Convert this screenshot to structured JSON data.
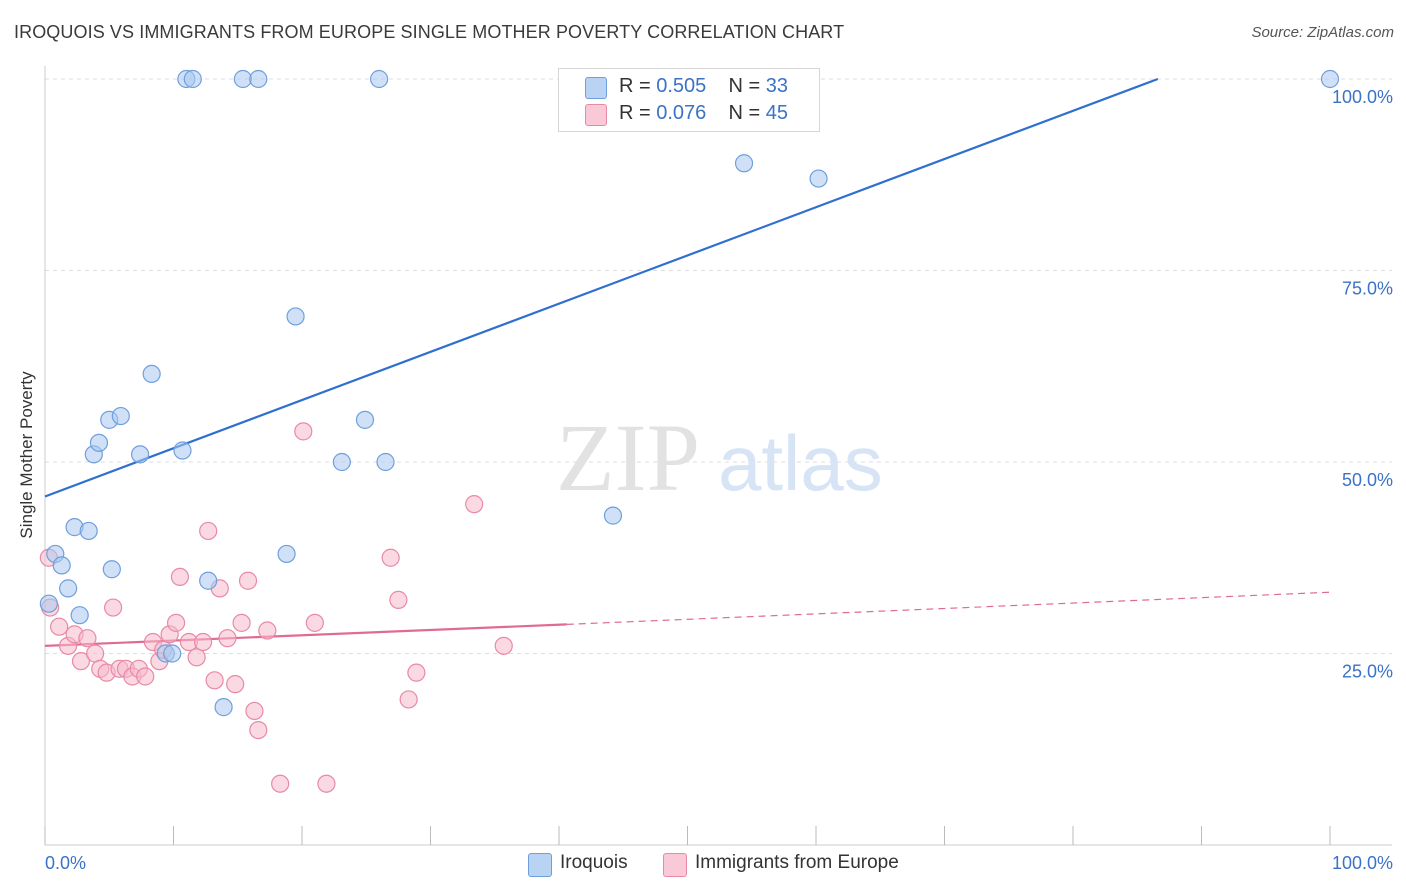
{
  "header": {
    "title": "IROQUOIS VS IMMIGRANTS FROM EUROPE SINGLE MOTHER POVERTY CORRELATION CHART",
    "source": "Source: ZipAtlas.com"
  },
  "watermark": {
    "zip": "ZIP",
    "atlas": "atlas"
  },
  "legend_top": {
    "rows": [
      {
        "r_label": "R = ",
        "r_value": "0.505",
        "n_label": "N = ",
        "n_value": "33"
      },
      {
        "r_label": "R = ",
        "r_value": "0.076",
        "n_label": "N = ",
        "n_value": "45"
      }
    ]
  },
  "legend_bottom": {
    "items": [
      {
        "label": "Iroquois"
      },
      {
        "label": "Immigrants from Europe"
      }
    ]
  },
  "colors": {
    "blue_fill": "#a9c8f0",
    "blue_stroke": "#6f9fdc",
    "blue_line": "#2f6fcf",
    "pink_fill": "#f6b9cc",
    "pink_stroke": "#e889a8",
    "pink_line": "#e06b92",
    "axis_text": "#3a72c8",
    "grid": "#dddddd"
  },
  "chart_data": {
    "type": "scatter",
    "title": "IROQUOIS VS IMMIGRANTS FROM EUROPE SINGLE MOTHER POVERTY CORRELATION CHART",
    "xlabel": "",
    "ylabel": "Single Mother Poverty",
    "xlim": [
      0,
      100
    ],
    "ylim": [
      0,
      100
    ],
    "x_tick_labels": [
      "0.0%",
      "100.0%"
    ],
    "y_tick_labels": [
      "25.0%",
      "50.0%",
      "75.0%",
      "100.0%"
    ],
    "y_ticks": [
      25,
      50,
      75,
      100
    ],
    "grid": true,
    "legend_position": "top-center",
    "series": [
      {
        "name": "Iroquois",
        "color": "blue",
        "points": [
          [
            0.3,
            31.5
          ],
          [
            0.8,
            38.0
          ],
          [
            1.3,
            36.5
          ],
          [
            1.8,
            33.5
          ],
          [
            2.3,
            41.5
          ],
          [
            2.7,
            30.0
          ],
          [
            3.4,
            41.0
          ],
          [
            3.8,
            51.0
          ],
          [
            4.2,
            52.5
          ],
          [
            5.0,
            55.5
          ],
          [
            5.2,
            36.0
          ],
          [
            5.9,
            56.0
          ],
          [
            7.4,
            51.0
          ],
          [
            8.3,
            61.5
          ],
          [
            9.4,
            25.0
          ],
          [
            9.9,
            25.0
          ],
          [
            10.7,
            51.5
          ],
          [
            11.0,
            100
          ],
          [
            11.5,
            100
          ],
          [
            12.7,
            34.5
          ],
          [
            13.9,
            18.0
          ],
          [
            15.4,
            100
          ],
          [
            16.6,
            100
          ],
          [
            18.8,
            38.0
          ],
          [
            19.5,
            69.0
          ],
          [
            23.1,
            50.0
          ],
          [
            24.9,
            55.5
          ],
          [
            26.0,
            100
          ],
          [
            26.5,
            50.0
          ],
          [
            44.2,
            43.0
          ],
          [
            54.4,
            89.0
          ],
          [
            60.2,
            87.0
          ],
          [
            100,
            100
          ]
        ],
        "trend": {
          "x": [
            0,
            86.6
          ],
          "y": [
            45.5,
            100
          ]
        }
      },
      {
        "name": "Immigrants from Europe",
        "color": "pink",
        "points": [
          [
            0.3,
            37.5
          ],
          [
            0.4,
            31.0
          ],
          [
            1.1,
            28.5
          ],
          [
            1.8,
            26.0
          ],
          [
            2.3,
            27.5
          ],
          [
            2.8,
            24.0
          ],
          [
            3.3,
            27.0
          ],
          [
            3.9,
            25.0
          ],
          [
            4.3,
            23.0
          ],
          [
            4.8,
            22.5
          ],
          [
            5.3,
            31.0
          ],
          [
            5.8,
            23.0
          ],
          [
            6.3,
            23.0
          ],
          [
            6.8,
            22.0
          ],
          [
            7.3,
            23.0
          ],
          [
            7.8,
            22.0
          ],
          [
            8.4,
            26.5
          ],
          [
            8.9,
            24.0
          ],
          [
            9.2,
            25.5
          ],
          [
            9.7,
            27.5
          ],
          [
            10.2,
            29.0
          ],
          [
            10.5,
            35.0
          ],
          [
            11.2,
            26.5
          ],
          [
            11.8,
            24.5
          ],
          [
            12.3,
            26.5
          ],
          [
            12.7,
            41.0
          ],
          [
            13.2,
            21.5
          ],
          [
            13.6,
            33.5
          ],
          [
            14.2,
            27.0
          ],
          [
            14.8,
            21.0
          ],
          [
            15.3,
            29.0
          ],
          [
            15.8,
            34.5
          ],
          [
            16.3,
            17.5
          ],
          [
            16.6,
            15.0
          ],
          [
            17.3,
            28.0
          ],
          [
            18.3,
            8.0
          ],
          [
            20.1,
            54.0
          ],
          [
            21.0,
            29.0
          ],
          [
            21.9,
            8.0
          ],
          [
            26.9,
            37.5
          ],
          [
            27.5,
            32.0
          ],
          [
            28.3,
            19.0
          ],
          [
            28.9,
            22.5
          ],
          [
            33.4,
            44.5
          ],
          [
            35.7,
            26.0
          ]
        ],
        "trend": {
          "x": [
            0,
            40.6
          ],
          "y": [
            26.0,
            28.8
          ]
        },
        "trend_dashed": {
          "x": [
            40.6,
            100
          ],
          "y": [
            28.8,
            33.0
          ]
        }
      }
    ]
  }
}
